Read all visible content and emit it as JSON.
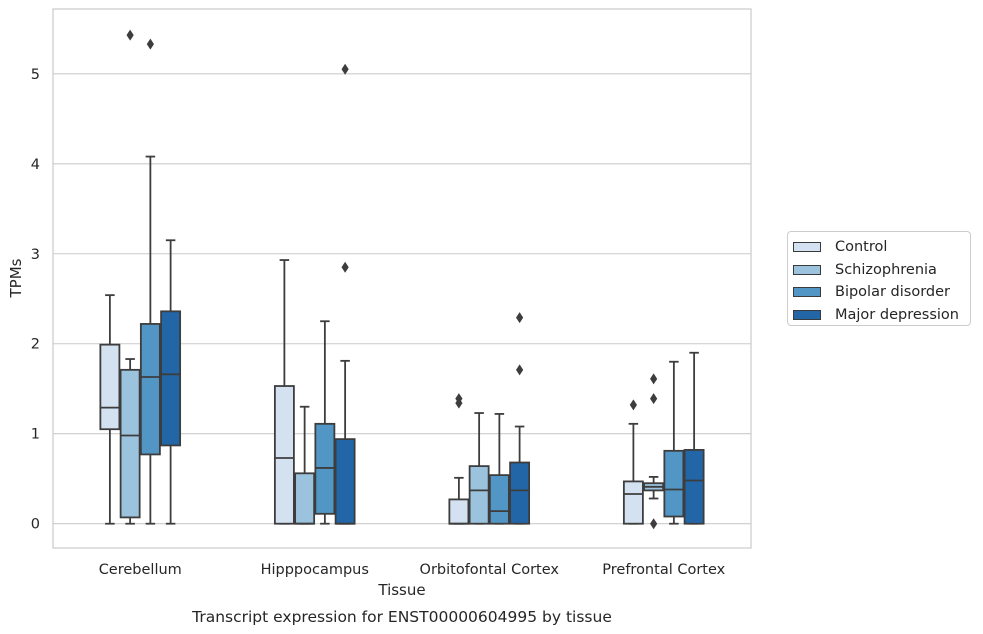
{
  "chart_data": {
    "type": "boxplot",
    "title": "Transcript expression for ENST00000604995 by tissue",
    "xlabel": "Tissue",
    "ylabel": "TPMs",
    "ylim": [
      -0.27,
      5.72
    ],
    "yticks": [
      0,
      1,
      2,
      3,
      4,
      5
    ],
    "grid": "horizontal",
    "legend_position": "center-right",
    "categories": [
      "Cerebellum",
      "Hipppocampus",
      "Orbitofontal Cortex",
      "Prefrontal Cortex"
    ],
    "series": [
      {
        "name": "Control",
        "color": "#d3e1f0",
        "boxes": [
          {
            "whislo": 0.0,
            "q1": 1.05,
            "med": 1.29,
            "q3": 1.99,
            "whishi": 2.54,
            "fliers": []
          },
          {
            "whislo": 0.0,
            "q1": 0.0,
            "med": 0.73,
            "q3": 1.53,
            "whishi": 2.93,
            "fliers": []
          },
          {
            "whislo": 0.0,
            "q1": 0.0,
            "med": 0.0,
            "q3": 0.27,
            "whishi": 0.51,
            "fliers": [
              1.34,
              1.39
            ]
          },
          {
            "whislo": 0.0,
            "q1": 0.0,
            "med": 0.33,
            "q3": 0.47,
            "whishi": 1.11,
            "fliers": [
              1.32
            ]
          }
        ]
      },
      {
        "name": "Schizophrenia",
        "color": "#9bc3dd",
        "boxes": [
          {
            "whislo": 0.0,
            "q1": 0.07,
            "med": 0.98,
            "q3": 1.71,
            "whishi": 1.83,
            "fliers": [
              5.43
            ]
          },
          {
            "whislo": 0.0,
            "q1": 0.0,
            "med": 0.0,
            "q3": 0.56,
            "whishi": 1.3,
            "fliers": []
          },
          {
            "whislo": 0.0,
            "q1": 0.0,
            "med": 0.37,
            "q3": 0.64,
            "whishi": 1.23,
            "fliers": []
          },
          {
            "whislo": 0.28,
            "q1": 0.37,
            "med": 0.41,
            "q3": 0.45,
            "whishi": 0.52,
            "fliers": [
              0.0,
              1.39,
              1.61
            ]
          }
        ]
      },
      {
        "name": "Bipolar disorder",
        "color": "#5296c5",
        "boxes": [
          {
            "whislo": 0.0,
            "q1": 0.77,
            "med": 1.63,
            "q3": 2.22,
            "whishi": 4.08,
            "fliers": [
              5.33
            ]
          },
          {
            "whislo": 0.0,
            "q1": 0.11,
            "med": 0.62,
            "q3": 1.11,
            "whishi": 2.25,
            "fliers": []
          },
          {
            "whislo": 0.0,
            "q1": 0.0,
            "med": 0.14,
            "q3": 0.54,
            "whishi": 1.22,
            "fliers": []
          },
          {
            "whislo": 0.0,
            "q1": 0.08,
            "med": 0.38,
            "q3": 0.81,
            "whishi": 1.8,
            "fliers": []
          }
        ]
      },
      {
        "name": "Major depression",
        "color": "#2266a8",
        "boxes": [
          {
            "whislo": 0.0,
            "q1": 0.87,
            "med": 1.66,
            "q3": 2.36,
            "whishi": 3.15,
            "fliers": []
          },
          {
            "whislo": 0.0,
            "q1": 0.0,
            "med": 0.0,
            "q3": 0.94,
            "whishi": 1.81,
            "fliers": [
              2.85,
              5.05
            ]
          },
          {
            "whislo": 0.0,
            "q1": 0.0,
            "med": 0.37,
            "q3": 0.68,
            "whishi": 1.08,
            "fliers": [
              1.71,
              2.29
            ]
          },
          {
            "whislo": 0.0,
            "q1": 0.0,
            "med": 0.48,
            "q3": 0.82,
            "whishi": 1.9,
            "fliers": []
          }
        ]
      }
    ]
  }
}
